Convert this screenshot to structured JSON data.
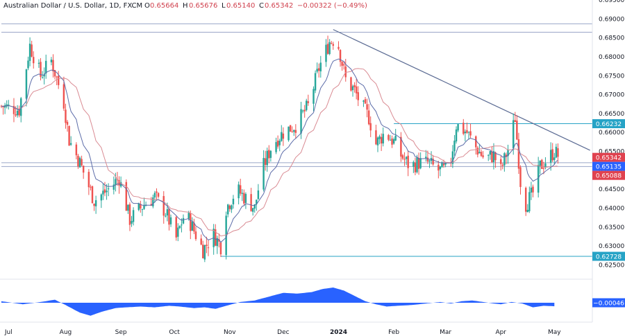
{
  "header": {
    "symbol": "Australian Dollar / U.S. Dollar, 1D, FXCM",
    "open_label": "O",
    "open": "0.65664",
    "high_label": "H",
    "high": "0.65676",
    "low_label": "L",
    "low": "0.65140",
    "close_label": "C",
    "close": "0.65342",
    "change": "−0.00322 (−0.49%)"
  },
  "chart_data": {
    "type": "candlestick",
    "price_axis": {
      "range": [
        0.6227,
        0.695
      ],
      "ticks": [
        "0.69500",
        "0.69000",
        "0.68500",
        "0.68000",
        "0.67500",
        "0.67000",
        "0.66500",
        "0.66000",
        "0.65500",
        "0.65000",
        "0.64500",
        "0.64000",
        "0.63500",
        "0.63000",
        "0.62500"
      ],
      "tick_values": [
        0.695,
        0.69,
        0.685,
        0.68,
        0.675,
        0.67,
        0.665,
        0.66,
        0.655,
        0.65,
        0.645,
        0.64,
        0.635,
        0.63,
        0.625
      ]
    },
    "time_axis": {
      "range_days": [
        0,
        313
      ],
      "labels": [
        {
          "label": "Jul",
          "day": 4
        },
        {
          "label": "Aug",
          "day": 36
        },
        {
          "label": "Sep",
          "day": 67
        },
        {
          "label": "Oct",
          "day": 97
        },
        {
          "label": "Nov",
          "day": 128
        },
        {
          "label": "Dec",
          "day": 158
        },
        {
          "label": "2024",
          "day": 189,
          "bold": true
        },
        {
          "label": "Feb",
          "day": 220
        },
        {
          "label": "Mar",
          "day": 249
        },
        {
          "label": "Apr",
          "day": 280
        },
        {
          "label": "May",
          "day": 310
        }
      ]
    },
    "price_tags": [
      {
        "value": 0.66232,
        "label": "0.66232",
        "color": "#26a3c6"
      },
      {
        "value": 0.65342,
        "label": "0.65342",
        "color": "#e0424f"
      },
      {
        "value": 0.65135,
        "label": "0.65135",
        "color": "#2962ff"
      },
      {
        "value": 0.65088,
        "label": "0.65088",
        "color": "#e0424f"
      },
      {
        "value": 0.62728,
        "label": "0.62728",
        "color": "#26a3c6"
      }
    ],
    "horizontal_lines": [
      {
        "value": 0.6887,
        "color": "#9aa6c8",
        "from_day": 0
      },
      {
        "value": 0.6865,
        "color": "#9aa6c8",
        "from_day": 0
      },
      {
        "value": 0.66232,
        "color": "#26a3c6",
        "from_day": 220
      },
      {
        "value": 0.652,
        "color": "#9aa6c8",
        "from_day": 0
      },
      {
        "value": 0.651,
        "color": "#9aa6c8",
        "from_day": 0
      },
      {
        "value": 0.62728,
        "color": "#26a3c6",
        "from_day": 123
      }
    ],
    "trendline": {
      "from": [
        186,
        0.6872
      ],
      "to": [
        330,
        0.6553
      ],
      "color": "#5b6b93"
    },
    "anchors": [
      [
        0,
        0.667
      ],
      [
        10,
        0.666
      ],
      [
        16,
        0.683
      ],
      [
        22,
        0.675
      ],
      [
        28,
        0.679
      ],
      [
        35,
        0.668
      ],
      [
        38,
        0.658
      ],
      [
        44,
        0.652
      ],
      [
        52,
        0.642
      ],
      [
        60,
        0.645
      ],
      [
        66,
        0.648
      ],
      [
        72,
        0.637
      ],
      [
        80,
        0.641
      ],
      [
        86,
        0.643
      ],
      [
        92,
        0.639
      ],
      [
        98,
        0.632
      ],
      [
        103,
        0.639
      ],
      [
        108,
        0.634
      ],
      [
        113,
        0.629
      ],
      [
        119,
        0.633
      ],
      [
        123,
        0.63
      ],
      [
        126,
        0.64
      ],
      [
        132,
        0.645
      ],
      [
        138,
        0.642
      ],
      [
        142,
        0.64
      ],
      [
        146,
        0.65
      ],
      [
        152,
        0.657
      ],
      [
        158,
        0.66
      ],
      [
        165,
        0.662
      ],
      [
        172,
        0.667
      ],
      [
        178,
        0.677
      ],
      [
        184,
        0.684
      ],
      [
        188,
        0.685
      ],
      [
        193,
        0.674
      ],
      [
        198,
        0.671
      ],
      [
        202,
        0.667
      ],
      [
        206,
        0.664
      ],
      [
        210,
        0.657
      ],
      [
        215,
        0.66
      ],
      [
        221,
        0.657
      ],
      [
        224,
        0.654
      ],
      [
        229,
        0.651
      ],
      [
        234,
        0.652
      ],
      [
        239,
        0.652
      ],
      [
        245,
        0.65
      ],
      [
        251,
        0.65
      ],
      [
        255,
        0.662
      ],
      [
        261,
        0.66
      ],
      [
        266,
        0.656
      ],
      [
        271,
        0.653
      ],
      [
        276,
        0.654
      ],
      [
        280,
        0.65
      ],
      [
        285,
        0.657
      ],
      [
        288,
        0.664
      ],
      [
        291,
        0.647
      ],
      [
        294,
        0.641
      ],
      [
        298,
        0.644
      ],
      [
        302,
        0.651
      ],
      [
        306,
        0.653
      ],
      [
        310,
        0.655
      ],
      [
        313,
        0.6534
      ]
    ],
    "ema_fast": {
      "period": 10,
      "color": "#5b6ba8"
    },
    "sma_slow": {
      "period": 20,
      "color": "#d98a92"
    },
    "colors": {
      "up": "#26a69a",
      "down": "#ef5350",
      "oscillator": "#2962ff"
    },
    "oscillator": {
      "last_value": -0.00046,
      "last_label": "−0.00046",
      "anchors": [
        [
          0,
          0.0002
        ],
        [
          12,
          -0.0002
        ],
        [
          22,
          0.0001
        ],
        [
          30,
          0.0004
        ],
        [
          36,
          -0.0003
        ],
        [
          44,
          -0.0013
        ],
        [
          50,
          -0.0017
        ],
        [
          56,
          -0.0012
        ],
        [
          64,
          -0.0007
        ],
        [
          70,
          -0.0006
        ],
        [
          78,
          -0.0005
        ],
        [
          86,
          -0.0006
        ],
        [
          94,
          -0.0004
        ],
        [
          100,
          -0.0005
        ],
        [
          108,
          -0.0007
        ],
        [
          114,
          -0.0006
        ],
        [
          120,
          -0.0008
        ],
        [
          126,
          -0.0004
        ],
        [
          134,
          0.0001
        ],
        [
          142,
          0.0003
        ],
        [
          150,
          0.0008
        ],
        [
          158,
          0.0013
        ],
        [
          166,
          0.0012
        ],
        [
          174,
          0.0014
        ],
        [
          180,
          0.0018
        ],
        [
          186,
          0.002
        ],
        [
          192,
          0.0016
        ],
        [
          198,
          0.0009
        ],
        [
          204,
          0.0002
        ],
        [
          210,
          -0.0002
        ],
        [
          216,
          -0.0005
        ],
        [
          222,
          -0.0004
        ],
        [
          230,
          -0.0003
        ],
        [
          238,
          -0.0001
        ],
        [
          246,
          0.0001
        ],
        [
          252,
          -0.0001
        ],
        [
          258,
          0.0002
        ],
        [
          264,
          0.0003
        ],
        [
          270,
          0.0001
        ],
        [
          276,
          -0.0001
        ],
        [
          280,
          -0.0002
        ],
        [
          286,
          0.0001
        ],
        [
          292,
          -0.0001
        ],
        [
          298,
          -0.0006
        ],
        [
          304,
          -0.0004
        ],
        [
          310,
          -0.00046
        ]
      ]
    }
  }
}
